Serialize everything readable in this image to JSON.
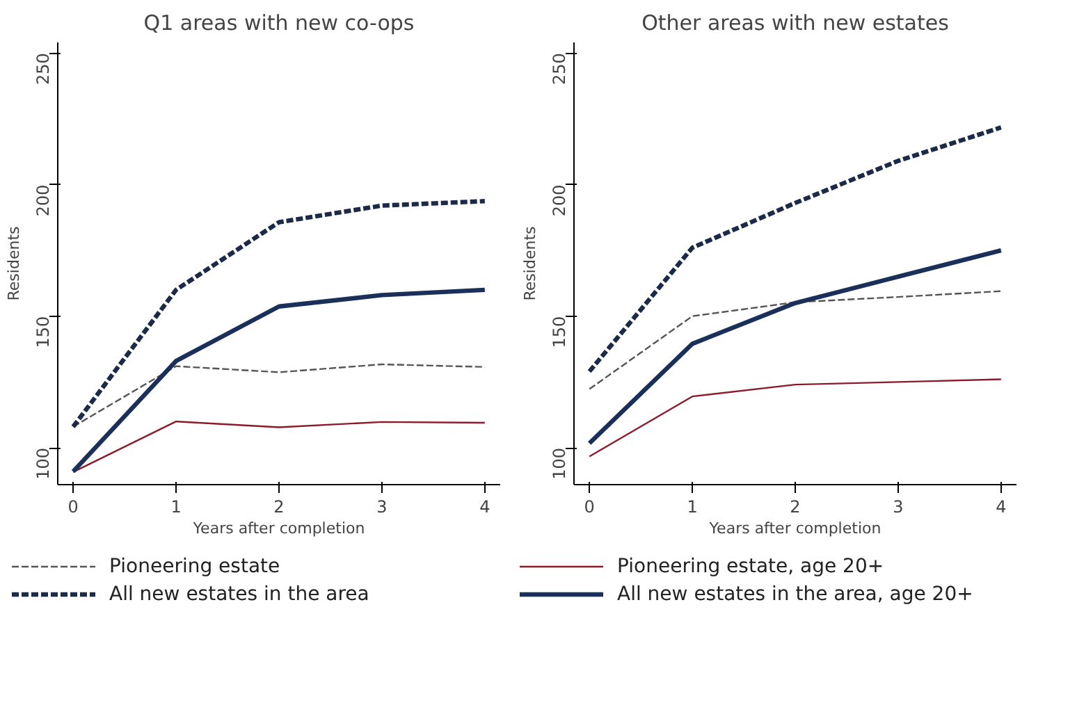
{
  "chart_data": [
    {
      "type": "line",
      "title": "Q1 areas with new co-ops",
      "xlabel": "Years after completion",
      "ylabel": "Residents",
      "x": [
        0,
        1,
        2,
        3,
        4
      ],
      "xlim": [
        -0.15,
        4.15
      ],
      "xticks": [
        0,
        1,
        2,
        3,
        4
      ],
      "ylim": [
        86,
        254
      ],
      "yticks": [
        100,
        150,
        200,
        250
      ],
      "grid": false,
      "legend": "bottom",
      "series": [
        {
          "name": "Pioneering estate",
          "color": "#555555",
          "line_style": "dashed",
          "values": [
            108,
            131,
            128.7,
            131.7,
            130.7
          ]
        },
        {
          "name": "All new estates in the area",
          "color": "#1c2a4a",
          "line_style": "dashed",
          "values": [
            108,
            160,
            185.7,
            192,
            193.7
          ]
        },
        {
          "color": "#8b1a2a",
          "line_style": "solid",
          "values": [
            90.8,
            110,
            107.8,
            109.8,
            109.5
          ]
        },
        {
          "color": "#1a2f5a",
          "line_style": "solid",
          "values": [
            91,
            133,
            153.7,
            158,
            160
          ]
        }
      ]
    },
    {
      "type": "line",
      "title": "Other areas with new estates",
      "xlabel": "Years after completion",
      "ylabel": "Residents",
      "x": [
        0,
        1,
        2,
        3,
        4
      ],
      "xlim": [
        -0.15,
        4.15
      ],
      "xticks": [
        0,
        1,
        2,
        3,
        4
      ],
      "ylim": [
        86,
        254
      ],
      "yticks": [
        100,
        150,
        200,
        250
      ],
      "grid": false,
      "legend": "bottom",
      "series": [
        {
          "color": "#555555",
          "line_style": "dashed",
          "values": [
            122.3,
            150,
            155.3,
            157.3,
            159.5
          ]
        },
        {
          "color": "#1c2a4a",
          "line_style": "dashed",
          "values": [
            129,
            176,
            193,
            209,
            221.7
          ]
        },
        {
          "name": "Pioneering estate, age 20+",
          "color": "#8b1a2a",
          "line_style": "solid",
          "values": [
            96.7,
            119.5,
            124,
            125,
            126
          ]
        },
        {
          "name": "All new estates in the area, age 20+",
          "color": "#1a2f5a",
          "line_style": "solid",
          "values": [
            101.7,
            139.5,
            155,
            165,
            175
          ]
        }
      ]
    }
  ]
}
